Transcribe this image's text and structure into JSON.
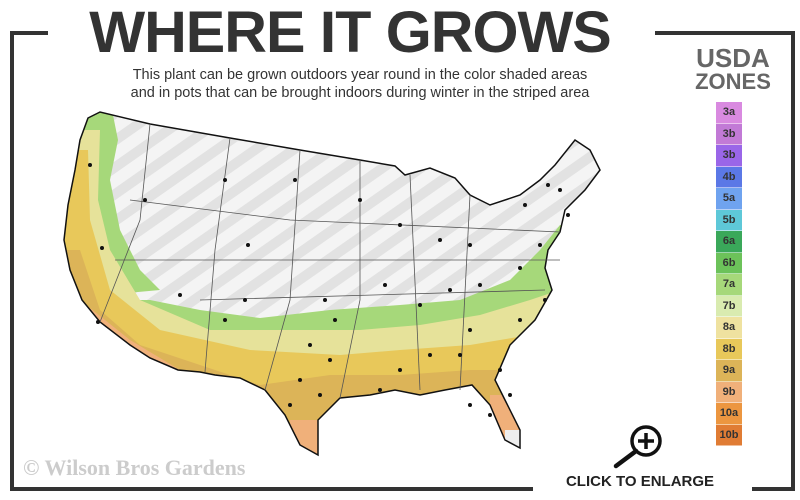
{
  "header": {
    "title": "WHERE IT GROWS",
    "subtitle_line1": "This plant can be grown outdoors year round in the color shaded areas",
    "subtitle_line2": "and in pots that can be brought indoors during winter in the striped area"
  },
  "legend": {
    "title_line1": "USDA",
    "title_line2": "ZONES",
    "zones": [
      {
        "label": "3a",
        "color": "#d98ae0"
      },
      {
        "label": "3b",
        "color": "#c27ad6"
      },
      {
        "label": "3b",
        "color": "#9a66e8"
      },
      {
        "label": "4b",
        "color": "#5b78e6"
      },
      {
        "label": "5a",
        "color": "#6fa3ef"
      },
      {
        "label": "5b",
        "color": "#5ec8d8"
      },
      {
        "label": "6a",
        "color": "#3aa85a"
      },
      {
        "label": "6b",
        "color": "#6cc25a"
      },
      {
        "label": "7a",
        "color": "#a6d87a"
      },
      {
        "label": "7b",
        "color": "#d9ebb0"
      },
      {
        "label": "8a",
        "color": "#efe2a0"
      },
      {
        "label": "8b",
        "color": "#e8c85a"
      },
      {
        "label": "9a",
        "color": "#dcb458"
      },
      {
        "label": "9b",
        "color": "#f0b07a"
      },
      {
        "label": "10a",
        "color": "#ec9640"
      },
      {
        "label": "10b",
        "color": "#e07c34"
      }
    ]
  },
  "footer": {
    "copyright": "© Wilson Bros Gardens",
    "enlarge_label": "CLICK TO ENLARGE",
    "enlarge_icon": "zoom-in-magnifier-icon"
  },
  "colors": {
    "frame": "#333333",
    "striped_area": "#eeeeee"
  }
}
